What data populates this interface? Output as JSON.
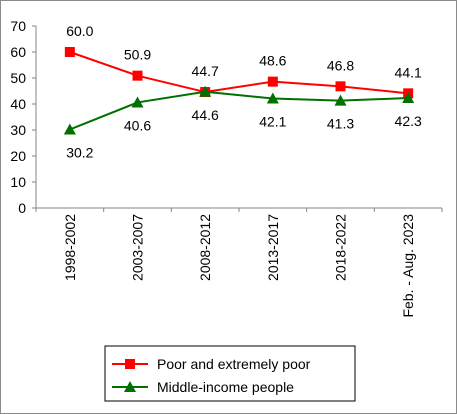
{
  "chart_data": {
    "type": "line",
    "title": "",
    "xlabel": "",
    "ylabel": "",
    "categories": [
      "1998-2002",
      "2003-2007",
      "2008-2012",
      "2013-2017",
      "2018-2022",
      "Feb. - Aug. 2023"
    ],
    "ylim": [
      0,
      70
    ],
    "yticks": [
      0,
      10,
      20,
      30,
      40,
      50,
      60,
      70
    ],
    "grid": false,
    "legend_position": "bottom",
    "series": [
      {
        "name": "Poor and extremely poor",
        "values": [
          60.0,
          50.9,
          44.6,
          48.6,
          46.8,
          44.1
        ],
        "labels": [
          "60.0",
          "50.9",
          "44.6",
          "48.6",
          "46.8",
          "44.1"
        ],
        "color": "#ff0000",
        "marker": "square"
      },
      {
        "name": "Middle-income people",
        "values": [
          30.2,
          40.6,
          44.7,
          42.1,
          41.3,
          42.3
        ],
        "labels": [
          "30.2",
          "40.6",
          "44.7",
          "42.1",
          "41.3",
          "42.3"
        ],
        "color": "#007000",
        "marker": "triangle"
      }
    ]
  }
}
